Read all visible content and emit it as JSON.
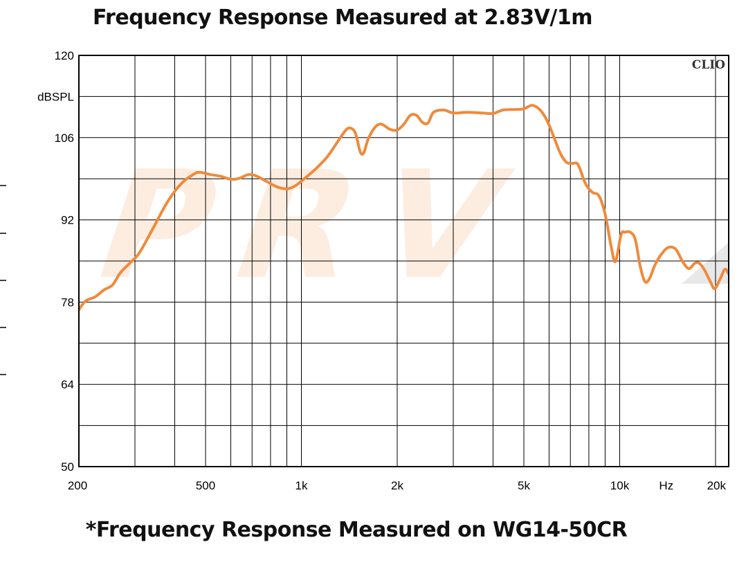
{
  "title": "Frequency Response Measured at 2.83V/1m",
  "caption": "*Frequency Response Measured  on WG14-50CR",
  "brand": "CLIO",
  "watermark": "PRV",
  "chart_data": {
    "type": "line",
    "title": "Frequency Response Measured at 2.83V/1m",
    "xlabel": "Hz",
    "ylabel": "dBSPL",
    "xscale": "log",
    "xlim": [
      200,
      22000
    ],
    "ylim": [
      50,
      120
    ],
    "grid": true,
    "x_tick_labels": [
      {
        "value": 200,
        "label": "200"
      },
      {
        "value": 500,
        "label": "500"
      },
      {
        "value": 1000,
        "label": "1k"
      },
      {
        "value": 2000,
        "label": "2k"
      },
      {
        "value": 5000,
        "label": "5k"
      },
      {
        "value": 10000,
        "label": "10k"
      },
      {
        "value": 20000,
        "label": "20k"
      }
    ],
    "y_tick_labels": [
      {
        "value": 120,
        "label": "120"
      },
      {
        "value": 106,
        "label": "106"
      },
      {
        "value": 92,
        "label": "92"
      },
      {
        "value": 78,
        "label": "78"
      },
      {
        "value": 64,
        "label": "64"
      },
      {
        "value": 50,
        "label": "50"
      }
    ],
    "series": [
      {
        "name": "WG14-50CR",
        "color": "#ef8a3c",
        "points": [
          [
            200,
            76.7
          ],
          [
            210,
            78.2
          ],
          [
            225,
            78.9
          ],
          [
            240,
            80.1
          ],
          [
            255,
            80.9
          ],
          [
            270,
            83.0
          ],
          [
            290,
            84.7
          ],
          [
            310,
            86.4
          ],
          [
            340,
            90.3
          ],
          [
            380,
            95.1
          ],
          [
            420,
            98.2
          ],
          [
            460,
            99.8
          ],
          [
            480,
            100.1
          ],
          [
            520,
            99.7
          ],
          [
            560,
            99.4
          ],
          [
            600,
            98.9
          ],
          [
            640,
            99.1
          ],
          [
            680,
            99.7
          ],
          [
            720,
            99.5
          ],
          [
            780,
            98.5
          ],
          [
            840,
            97.6
          ],
          [
            900,
            97.3
          ],
          [
            950,
            97.7
          ],
          [
            1000,
            98.6
          ],
          [
            1100,
            100.5
          ],
          [
            1200,
            102.6
          ],
          [
            1300,
            105.3
          ],
          [
            1380,
            107.3
          ],
          [
            1430,
            107.6
          ],
          [
            1480,
            106.7
          ],
          [
            1530,
            103.6
          ],
          [
            1570,
            103.4
          ],
          [
            1620,
            105.7
          ],
          [
            1700,
            107.7
          ],
          [
            1780,
            108.3
          ],
          [
            1900,
            107.4
          ],
          [
            2000,
            107.3
          ],
          [
            2100,
            108.3
          ],
          [
            2200,
            109.8
          ],
          [
            2300,
            109.8
          ],
          [
            2400,
            108.6
          ],
          [
            2500,
            108.5
          ],
          [
            2600,
            110.3
          ],
          [
            2800,
            110.7
          ],
          [
            3000,
            110.2
          ],
          [
            3300,
            110.3
          ],
          [
            3700,
            110.2
          ],
          [
            4000,
            110.1
          ],
          [
            4300,
            110.7
          ],
          [
            4700,
            110.8
          ],
          [
            5000,
            110.9
          ],
          [
            5300,
            111.5
          ],
          [
            5600,
            110.8
          ],
          [
            5900,
            109.0
          ],
          [
            6200,
            106.2
          ],
          [
            6500,
            103.4
          ],
          [
            6800,
            101.8
          ],
          [
            7100,
            101.6
          ],
          [
            7400,
            101.4
          ],
          [
            7800,
            98.2
          ],
          [
            8200,
            96.7
          ],
          [
            8600,
            96.1
          ],
          [
            9000,
            93.0
          ],
          [
            9400,
            87.5
          ],
          [
            9700,
            84.9
          ],
          [
            10100,
            89.5
          ],
          [
            10400,
            89.9
          ],
          [
            10800,
            89.9
          ],
          [
            11200,
            88.6
          ],
          [
            11600,
            84.1
          ],
          [
            12000,
            81.5
          ],
          [
            12400,
            82.0
          ],
          [
            12900,
            84.3
          ],
          [
            13500,
            86.1
          ],
          [
            14200,
            87.3
          ],
          [
            15000,
            87.0
          ],
          [
            15800,
            84.8
          ],
          [
            16500,
            83.7
          ],
          [
            17200,
            84.6
          ],
          [
            17800,
            84.6
          ],
          [
            18500,
            83.4
          ],
          [
            19300,
            81.4
          ],
          [
            19900,
            80.3
          ],
          [
            20700,
            82.0
          ],
          [
            21400,
            83.6
          ],
          [
            22000,
            82.8
          ]
        ]
      }
    ]
  }
}
